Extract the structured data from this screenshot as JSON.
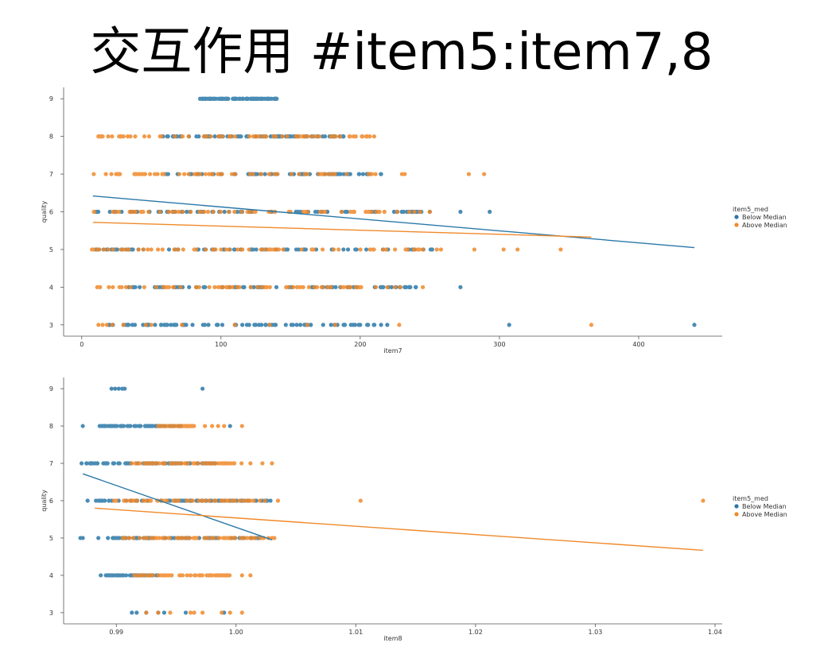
{
  "title": "交互作用 #item5:item7,8",
  "colors": {
    "below": "#2b78a8",
    "above": "#f0892a",
    "axis": "#555555"
  },
  "chart_data": [
    {
      "type": "scatter",
      "xlabel": "item7",
      "ylabel": "quality",
      "xlim": [
        -13,
        460
      ],
      "ylim": [
        2.7,
        9.3
      ],
      "xticks": [
        0,
        100,
        200,
        300,
        400
      ],
      "yticks": [
        3,
        4,
        5,
        6,
        7,
        8,
        9
      ],
      "grid": false,
      "legend": {
        "title": "item5_med",
        "placement": "right",
        "entries": [
          "Below Median",
          "Above Median"
        ]
      },
      "series": [
        {
          "name": "Below Median",
          "dense": [
            [
              9,
              85,
              140
            ],
            [
              8,
              58,
              188
            ],
            [
              7,
              60,
              215
            ],
            [
              6,
              10,
              252
            ],
            [
              5,
              10,
              255
            ],
            [
              4,
              20,
              240
            ],
            [
              3,
              15,
              225
            ]
          ],
          "points": [
            [
              85,
              9
            ],
            [
              113,
              9
            ],
            [
              119,
              9
            ],
            [
              125,
              9
            ],
            [
              140,
              9
            ],
            [
              125,
              8
            ],
            [
              150,
              8
            ],
            [
              165,
              8
            ],
            [
              173,
              8
            ],
            [
              178,
              8
            ],
            [
              188,
              8
            ],
            [
              205,
              7
            ],
            [
              215,
              7
            ],
            [
              230,
              6
            ],
            [
              240,
              6
            ],
            [
              250,
              6
            ],
            [
              272,
              6
            ],
            [
              293,
              6
            ],
            [
              220,
              5
            ],
            [
              235,
              5
            ],
            [
              180,
              4
            ],
            [
              233,
              4
            ],
            [
              236,
              4
            ],
            [
              272,
              4
            ],
            [
              20,
              3
            ],
            [
              33,
              3
            ],
            [
              57,
              3
            ],
            [
              67,
              3
            ],
            [
              97,
              3
            ],
            [
              110,
              3
            ],
            [
              125,
              3
            ],
            [
              157,
              3
            ],
            [
              195,
              3
            ],
            [
              200,
              3
            ],
            [
              205,
              3
            ],
            [
              215,
              3
            ],
            [
              307,
              3
            ],
            [
              440,
              3
            ]
          ],
          "trend": [
            [
              8,
              6.42
            ],
            [
              440,
              5.05
            ]
          ]
        },
        {
          "name": "Above Median",
          "dense": [
            [
              8,
              12,
              210
            ],
            [
              7,
              8,
              212
            ],
            [
              6,
              8,
              250
            ],
            [
              5,
              7,
              248
            ],
            [
              4,
              8,
              232
            ]
          ],
          "points": [
            [
              12,
              8
            ],
            [
              15,
              8
            ],
            [
              19,
              8
            ],
            [
              30,
              8
            ],
            [
              35,
              8
            ],
            [
              45,
              8
            ],
            [
              210,
              8
            ],
            [
              230,
              7
            ],
            [
              232,
              7
            ],
            [
              278,
              7
            ],
            [
              289,
              7
            ],
            [
              250,
              6
            ],
            [
              225,
              5
            ],
            [
              245,
              5
            ],
            [
              255,
              5
            ],
            [
              258,
              5
            ],
            [
              282,
              5
            ],
            [
              303,
              5
            ],
            [
              313,
              5
            ],
            [
              344,
              5
            ],
            [
              225,
              4
            ],
            [
              245,
              4
            ],
            [
              12,
              3
            ],
            [
              15,
              3
            ],
            [
              18,
              3
            ],
            [
              22,
              3
            ],
            [
              30,
              3
            ],
            [
              46,
              3
            ],
            [
              50,
              3
            ],
            [
              72,
              3
            ],
            [
              110,
              3
            ],
            [
              135,
              3
            ],
            [
              162,
              3
            ],
            [
              182,
              3
            ],
            [
              228,
              3
            ],
            [
              366,
              3
            ]
          ],
          "trend": [
            [
              8,
              5.72
            ],
            [
              366,
              5.33
            ]
          ]
        }
      ]
    },
    {
      "type": "scatter",
      "xlabel": "item8",
      "ylabel": "quality",
      "xlim": [
        0.9856,
        1.0406
      ],
      "ylim": [
        2.7,
        9.3
      ],
      "xticks": [
        0.99,
        1.0,
        1.01,
        1.02,
        1.03,
        1.04
      ],
      "xticklabels": [
        "0.99",
        "1.00",
        "1.01",
        "1.02",
        "1.03",
        "1.04"
      ],
      "yticks": [
        3,
        4,
        5,
        6,
        7,
        8,
        9
      ],
      "grid": false,
      "legend": {
        "title": "item5_med",
        "placement": "right",
        "entries": [
          "Below Median",
          "Above Median"
        ]
      },
      "series": [
        {
          "name": "Below Median",
          "dense": [
            [
              8,
              0.9885,
              0.9955
            ],
            [
              7,
              0.9875,
              0.9985
            ],
            [
              6,
              0.9885,
              1.003
            ],
            [
              5,
              0.9895,
              1.002
            ],
            [
              4,
              0.989,
              0.9935
            ]
          ],
          "points": [
            [
              0.9896,
              9
            ],
            [
              0.9899,
              9
            ],
            [
              0.9902,
              9
            ],
            [
              0.9905,
              9
            ],
            [
              0.9907,
              9
            ],
            [
              0.9972,
              9
            ],
            [
              0.9872,
              8
            ],
            [
              0.9995,
              8
            ],
            [
              0.9871,
              7
            ],
            [
              0.9875,
              7
            ],
            [
              0.9878,
              7
            ],
            [
              0.9882,
              7
            ],
            [
              0.9876,
              6
            ],
            [
              0.9883,
              6
            ],
            [
              0.9887,
              6
            ],
            [
              0.987,
              5
            ],
            [
              0.9872,
              5
            ],
            [
              0.9885,
              5
            ],
            [
              0.9893,
              5
            ],
            [
              0.9897,
              5
            ],
            [
              0.9887,
              4
            ],
            [
              0.9893,
              4
            ],
            [
              0.9897,
              4
            ],
            [
              0.9913,
              3
            ],
            [
              0.9917,
              3
            ],
            [
              0.9925,
              3
            ],
            [
              0.9935,
              3
            ],
            [
              0.994,
              3
            ],
            [
              0.9958,
              3
            ],
            [
              0.999,
              3
            ]
          ],
          "trend": [
            [
              0.9872,
              6.72
            ],
            [
              1.003,
              4.95
            ]
          ]
        },
        {
          "name": "Above Median",
          "dense": [
            [
              8,
              0.9935,
              0.9965
            ],
            [
              7,
              0.991,
              1.0005
            ],
            [
              6,
              0.9895,
              1.0025
            ],
            [
              5,
              0.9905,
              1.003
            ],
            [
              4,
              0.9915,
              0.9995
            ]
          ],
          "points": [
            [
              0.9935,
              8
            ],
            [
              0.9945,
              8
            ],
            [
              0.9955,
              8
            ],
            [
              0.9962,
              8
            ],
            [
              0.9974,
              8
            ],
            [
              0.998,
              8
            ],
            [
              0.9985,
              8
            ],
            [
              0.999,
              8
            ],
            [
              1.0005,
              8
            ],
            [
              1.0012,
              7
            ],
            [
              1.0022,
              7
            ],
            [
              1.003,
              7
            ],
            [
              1.002,
              6
            ],
            [
              1.0035,
              6
            ],
            [
              1.0104,
              6
            ],
            [
              1.039,
              6
            ],
            [
              1.002,
              5
            ],
            [
              1.003,
              5
            ],
            [
              1.0032,
              5
            ],
            [
              1.0005,
              4
            ],
            [
              1.0012,
              4
            ],
            [
              0.9925,
              3
            ],
            [
              0.9935,
              3
            ],
            [
              0.9945,
              3
            ],
            [
              0.9962,
              3
            ],
            [
              0.9965,
              3
            ],
            [
              0.9972,
              3
            ],
            [
              0.9988,
              3
            ],
            [
              0.9995,
              3
            ],
            [
              1.0005,
              3
            ]
          ],
          "trend": [
            [
              0.9882,
              5.8
            ],
            [
              1.039,
              4.67
            ]
          ]
        }
      ]
    }
  ]
}
